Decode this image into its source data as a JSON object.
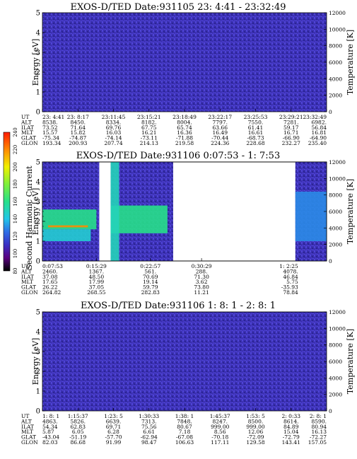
{
  "colors": {
    "background": "#3a2fae",
    "noise_light": "#4e44d6",
    "noise_dark": "#2a2496",
    "text": "#000000"
  },
  "colorbar": {
    "label": "Second Harmonic Current",
    "ticks": [
      "80",
      "100",
      "120",
      "140",
      "160",
      "180",
      "200",
      "220",
      "240"
    ],
    "stops": [
      {
        "v": 80,
        "c": "#000000"
      },
      {
        "v": 95,
        "c": "#5a0080"
      },
      {
        "v": 110,
        "c": "#3a2fc4"
      },
      {
        "v": 125,
        "c": "#2f6ee6"
      },
      {
        "v": 140,
        "c": "#22c6e8"
      },
      {
        "v": 160,
        "c": "#27e08a"
      },
      {
        "v": 180,
        "c": "#7ef03a"
      },
      {
        "v": 200,
        "c": "#f0f000"
      },
      {
        "v": 220,
        "c": "#ff8a00"
      },
      {
        "v": 240,
        "c": "#ff1a00"
      }
    ]
  },
  "panels": [
    {
      "title": "EXOS-D/TED  Date:931105  23: 4:41 - 23:32:49",
      "ylabel": "Energy [eV]",
      "y2label": "Temperature [K]",
      "yticks": [
        "0",
        "1",
        "2",
        "3",
        "4",
        "5"
      ],
      "y2ticks": [
        "0",
        "2000",
        "4000",
        "6000",
        "8000",
        "10000",
        "12000"
      ],
      "rows": {
        "UT": [
          "23: 4:41",
          "23: 8:17",
          "23:11:45",
          "23:15:21",
          "23:18:49",
          "23:22:17",
          "23:25:53",
          "23:29:21",
          "23:32:49"
        ],
        "ALT": [
          "8538.",
          "8450.",
          "8334.",
          "8182.",
          "8004.",
          "7797.",
          "7550.",
          "7281.",
          "6982."
        ],
        "ILAT": [
          "73.52",
          "71.64",
          "69.76",
          "67.75",
          "65.74",
          "63.66",
          "61.41",
          "59.17",
          "56.84"
        ],
        "MLT": [
          "15.57",
          "15.82",
          "16.03",
          "16.21",
          "16.36",
          "16.49",
          "16.61",
          "16.71",
          "16.81"
        ],
        "GLAT": [
          "-75.34",
          "-74.87",
          "-74.14",
          "-73.11",
          "-71.88",
          "-70.44",
          "-68.73",
          "-66.90",
          "-64.90"
        ],
        "GLON": [
          "193.34",
          "200.93",
          "207.74",
          "214.13",
          "219.58",
          "224.36",
          "228.68",
          "232.27",
          "235.40"
        ]
      }
    },
    {
      "title": "EXOS-D/TED   Date:931106  0:07:53 - 1: 7:53",
      "ylabel": "Energy [eV]",
      "y2label": "Temperature [K]",
      "yticks": [
        "0",
        "1",
        "2",
        "3",
        "4",
        "5"
      ],
      "y2ticks": [
        "0",
        "2000",
        "4000",
        "6000",
        "8000",
        "10000",
        "12000"
      ],
      "rows": {
        "UT": [
          "0:07:53",
          "0:15:29",
          "0:22:57",
          "0:30:29",
          "1: 2:25"
        ],
        "ALT": [
          "2460.",
          "1367.",
          "561.",
          "288.",
          "4078."
        ],
        "ILAT": [
          "37.08",
          "48.50",
          "70.69",
          "71.30",
          "46.84"
        ],
        "MLT": [
          "17.65",
          "17.99",
          "19.14",
          "3.62",
          "5.75"
        ],
        "GLAT": [
          "26.22",
          "37.05",
          "59.79",
          "73.80",
          "-35.93"
        ],
        "GLON": [
          "264.82",
          "268.55",
          "282.83",
          "11.21",
          "78.84"
        ]
      }
    },
    {
      "title": "EXOS-D/TED   Date:931106  1: 8: 1 - 2: 8: 1",
      "ylabel": "Energy [eV]",
      "y2label": "Temperature [K]",
      "yticks": [
        "0",
        "1",
        "2",
        "3",
        "4",
        "5"
      ],
      "y2ticks": [
        "0",
        "2000",
        "4000",
        "6000",
        "8000",
        "10000",
        "12000"
      ],
      "rows": {
        "UT": [
          "1: 8: 1",
          "1:15:37",
          "1:23: 5",
          "1:30:33",
          "1:38: 1",
          "1:45:37",
          "1:53: 5",
          "2: 0:33",
          "2: 8: 1"
        ],
        "ALT": [
          "4863.",
          "5826.",
          "6639.",
          "7313.",
          "7848.",
          "8247.",
          "8500.",
          "8614.",
          "8590."
        ],
        "ILAT": [
          "54.34",
          "62.83",
          "69.71",
          "75.56",
          "80.67",
          "999.00",
          "999.00",
          "84.89",
          "80.94"
        ],
        "MLT": [
          "5.87",
          "6.05",
          "6.28",
          "6.61",
          "7.18",
          "8.56",
          "12.06",
          "15.04",
          "16.13"
        ],
        "GLAT": [
          "-43.04",
          "-51.19",
          "-57.70",
          "-62.94",
          "-67.08",
          "-70.18",
          "-72.09",
          "-72.79",
          "-72.27"
        ],
        "GLON": [
          "82.03",
          "86.68",
          "91.99",
          "98.47",
          "106.63",
          "117.11",
          "129.58",
          "143.41",
          "157.05"
        ]
      }
    }
  ],
  "chart_data": [
    {
      "type": "heatmap",
      "title": "EXOS-D/TED  Date:931105  23: 4:41 - 23:32:49",
      "xlabel": "",
      "ylabel": "Energy [eV]",
      "y2label": "Temperature [K]",
      "ylim": [
        0,
        5
      ],
      "y2lim": [
        0,
        12000
      ],
      "x_tick_labels": [
        "23: 4:41",
        "23: 8:17",
        "23:11:45",
        "23:15:21",
        "23:18:49",
        "23:22:17",
        "23:25:53",
        "23:29:21",
        "23:32:49"
      ],
      "colorbar_range": [
        80,
        240
      ],
      "data_coverage": [
        [
          0.0,
          1.0
        ]
      ],
      "bands": []
    },
    {
      "type": "heatmap",
      "title": "EXOS-D/TED   Date:931106  0:07:53 - 1: 7:53",
      "xlabel": "",
      "ylabel": "Energy [eV]",
      "y2label": "Temperature [K]",
      "ylim": [
        0,
        5
      ],
      "y2lim": [
        0,
        12000
      ],
      "x_tick_labels": [
        "0:07:53",
        "0:15:29",
        "0:22:57",
        "0:30:29",
        "1: 2:25"
      ],
      "colorbar_range": [
        80,
        240
      ],
      "data_coverage": [
        [
          0.0,
          0.2
        ],
        [
          0.24,
          0.46
        ],
        [
          0.89,
          1.0
        ]
      ],
      "bands": [
        {
          "x": [
            0.0,
            0.19
          ],
          "y": [
            1.6,
            2.6
          ],
          "level": 160
        },
        {
          "x": [
            0.0,
            0.17
          ],
          "y": [
            1.0,
            1.6
          ],
          "level": 145
        },
        {
          "x": [
            0.02,
            0.16
          ],
          "y": [
            1.7,
            1.8
          ],
          "level": 220
        },
        {
          "x": [
            0.24,
            0.44
          ],
          "y": [
            1.4,
            2.8
          ],
          "level": 160
        },
        {
          "x": [
            0.24,
            0.27
          ],
          "y": [
            0.0,
            5.0
          ],
          "level": 150
        },
        {
          "x": [
            0.89,
            1.0
          ],
          "y": [
            1.0,
            3.5
          ],
          "level": 130
        }
      ]
    },
    {
      "type": "heatmap",
      "title": "EXOS-D/TED   Date:931106  1: 8: 1 - 2: 8: 1",
      "xlabel": "",
      "ylabel": "Energy [eV]",
      "y2label": "Temperature [K]",
      "ylim": [
        0,
        5
      ],
      "y2lim": [
        0,
        12000
      ],
      "x_tick_labels": [
        "1: 8: 1",
        "1:15:37",
        "1:23: 5",
        "1:30:33",
        "1:38: 1",
        "1:45:37",
        "1:53: 5",
        "2: 0:33",
        "2: 8: 1"
      ],
      "colorbar_range": [
        80,
        240
      ],
      "data_coverage": [
        [
          0.0,
          1.0
        ]
      ],
      "bands": []
    }
  ]
}
